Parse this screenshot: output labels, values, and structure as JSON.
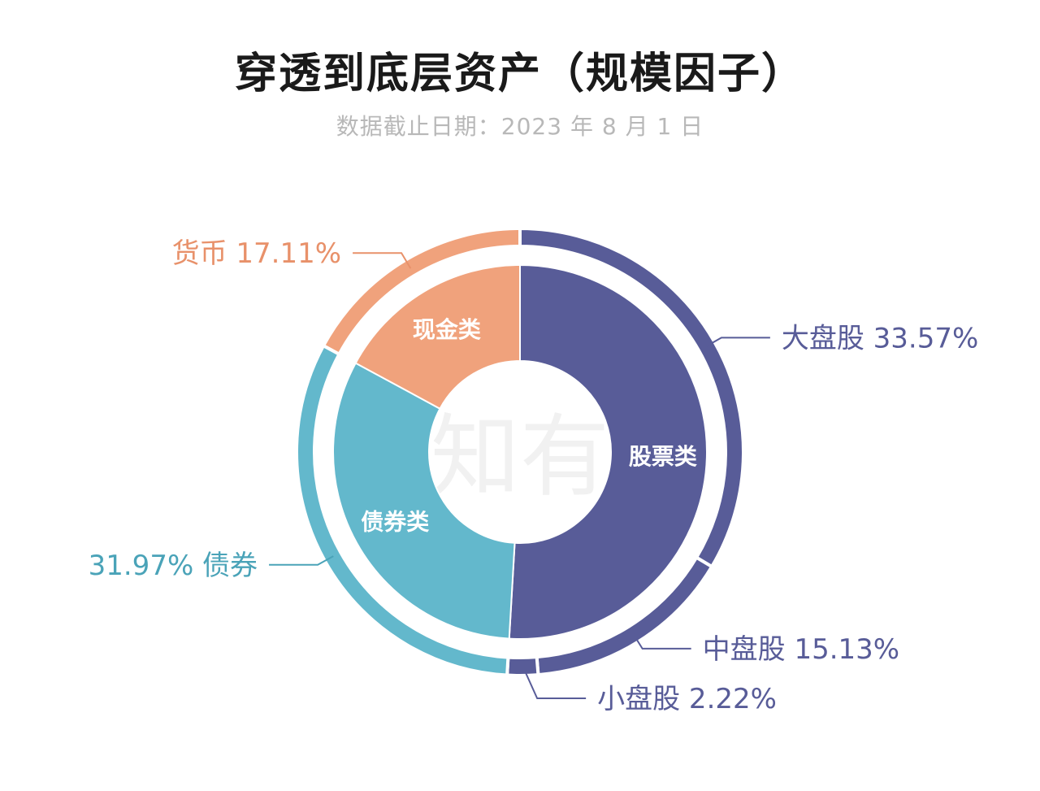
{
  "header": {
    "title": "穿透到底层资产（规模因子）",
    "subtitle": "数据截止日期：2023 年 8 月 1 日"
  },
  "watermark": "有知有行",
  "colors": {
    "stock": "#585c98",
    "bond": "#63b8cc",
    "cash": "#f0a27c",
    "stock_text": "#585c98",
    "bond_text": "#4aa3b8",
    "cash_text": "#e8916a"
  },
  "chart_data": [
    {
      "type": "pie",
      "ring": "inner",
      "categories": [
        "股票类",
        "债券类",
        "现金类"
      ],
      "values": [
        50.92,
        31.97,
        17.11
      ],
      "colors": [
        "#585c98",
        "#63b8cc",
        "#f0a27c"
      ]
    },
    {
      "type": "pie",
      "ring": "outer",
      "categories": [
        "大盘股",
        "中盘股",
        "小盘股",
        "债券",
        "货币"
      ],
      "values": [
        33.57,
        15.13,
        2.22,
        31.97,
        17.11
      ],
      "labels": [
        "大盘股 33.57%",
        "中盘股 15.13%",
        "小盘股 2.22%",
        "31.97% 债券",
        "货币 17.11%"
      ],
      "colors": [
        "#585c98",
        "#585c98",
        "#585c98",
        "#63b8cc",
        "#f0a27c"
      ]
    }
  ]
}
